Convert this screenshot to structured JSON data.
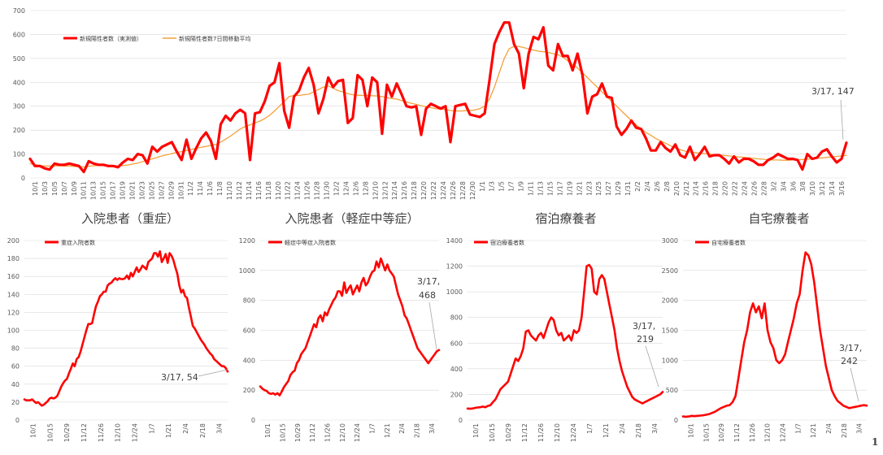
{
  "page_number": "1",
  "chart_data": [
    {
      "type": "line",
      "title": "",
      "legend_position": "top-left",
      "grid": true,
      "ylim": [
        0,
        700
      ],
      "yticks": [
        0,
        100,
        200,
        300,
        400,
        500,
        600,
        700
      ],
      "x_tick_labels": [
        "10/1",
        "10/3",
        "10/5",
        "10/7",
        "10/9",
        "10/11",
        "10/13",
        "10/15",
        "10/17",
        "10/19",
        "10/21",
        "10/23",
        "10/25",
        "10/27",
        "10/29",
        "10/31",
        "11/2",
        "11/4",
        "11/6",
        "11/8",
        "11/10",
        "11/12",
        "11/14",
        "11/16",
        "11/18",
        "11/20",
        "11/22",
        "11/24",
        "11/26",
        "11/28",
        "11/30",
        "12/2",
        "12/4",
        "12/6",
        "12/8",
        "12/10",
        "12/12",
        "12/14",
        "12/16",
        "12/18",
        "12/20",
        "12/22",
        "12/24",
        "12/26",
        "12/28",
        "12/30",
        "1/1",
        "1/3",
        "1/5",
        "1/7",
        "1/9",
        "1/11",
        "1/13",
        "1/15",
        "1/17",
        "1/19",
        "1/21",
        "1/23",
        "1/25",
        "1/27",
        "1/29",
        "1/31",
        "2/2",
        "2/4",
        "2/6",
        "2/8",
        "2/10",
        "2/12",
        "2/14",
        "2/16",
        "2/18",
        "2/20",
        "2/22",
        "2/24",
        "2/26",
        "2/28",
        "3/2",
        "3/4",
        "3/6",
        "3/8",
        "3/10",
        "3/12",
        "3/14",
        "3/16"
      ],
      "series": [
        {
          "name": "新規陽性者数（実測値）",
          "color": "#ff0000",
          "values": [
            80,
            50,
            50,
            40,
            35,
            60,
            55,
            55,
            60,
            55,
            50,
            25,
            70,
            60,
            55,
            55,
            50,
            50,
            45,
            65,
            80,
            75,
            100,
            95,
            60,
            130,
            110,
            130,
            140,
            150,
            110,
            75,
            160,
            80,
            125,
            165,
            190,
            155,
            80,
            225,
            260,
            240,
            270,
            285,
            270,
            75,
            270,
            275,
            320,
            385,
            400,
            480,
            280,
            210,
            340,
            365,
            420,
            460,
            390,
            270,
            330,
            420,
            380,
            405,
            410,
            230,
            250,
            430,
            410,
            300,
            420,
            400,
            185,
            390,
            340,
            395,
            350,
            300,
            295,
            300,
            180,
            290,
            310,
            300,
            290,
            300,
            150,
            300,
            305,
            310,
            265,
            260,
            255,
            270,
            410,
            560,
            610,
            650,
            650,
            560,
            520,
            375,
            520,
            590,
            580,
            630,
            470,
            450,
            560,
            510,
            510,
            450,
            520,
            430,
            270,
            340,
            350,
            395,
            340,
            335,
            215,
            180,
            205,
            240,
            210,
            205,
            165,
            115,
            115,
            150,
            125,
            110,
            140,
            95,
            85,
            130,
            75,
            100,
            130,
            90,
            95,
            95,
            80,
            60,
            90,
            65,
            80,
            80,
            70,
            55,
            55,
            75,
            85,
            100,
            90,
            80,
            80,
            75,
            35,
            100,
            80,
            85,
            110,
            120,
            90,
            65,
            80,
            147
          ]
        },
        {
          "name": "新規陽性者数7日間移動平均",
          "color": "#f4a13b",
          "values": [
            60,
            55,
            52,
            50,
            50,
            50,
            51,
            50,
            50,
            48,
            47,
            46,
            49,
            51,
            52,
            52,
            52,
            51,
            50,
            52,
            54,
            58,
            62,
            68,
            75,
            80,
            86,
            92,
            97,
            102,
            107,
            110,
            115,
            119,
            124,
            128,
            132,
            136,
            140,
            150,
            162,
            175,
            190,
            205,
            215,
            222,
            230,
            238,
            248,
            262,
            280,
            300,
            320,
            340,
            345,
            345,
            348,
            350,
            360,
            370,
            380,
            385,
            375,
            365,
            360,
            352,
            348,
            346,
            345,
            345,
            344,
            343,
            340,
            336,
            332,
            330,
            324,
            318,
            312,
            308,
            302,
            298,
            294,
            290,
            288,
            286,
            282,
            280,
            280,
            281,
            282,
            284,
            290,
            300,
            330,
            380,
            440,
            500,
            540,
            550,
            550,
            545,
            540,
            535,
            530,
            528,
            525,
            520,
            515,
            505,
            490,
            475,
            460,
            440,
            420,
            400,
            380,
            360,
            340,
            320,
            300,
            280,
            260,
            240,
            222,
            205,
            190,
            178,
            165,
            155,
            145,
            135,
            125,
            118,
            112,
            108,
            106,
            104,
            102,
            100,
            98,
            96,
            94,
            92,
            90,
            88,
            86,
            84,
            82,
            80,
            78,
            76,
            75,
            75,
            74,
            74,
            75,
            76,
            77,
            78,
            80,
            82,
            84,
            86,
            88,
            90,
            92,
            94
          ]
        }
      ]
    },
    {
      "type": "line",
      "title": "入院患者（重症）",
      "legend_position": "top-left",
      "grid": true,
      "ylim": [
        0,
        200
      ],
      "yticks": [
        0,
        20,
        40,
        60,
        80,
        100,
        120,
        140,
        160,
        180,
        200
      ],
      "x_tick_labels": [
        "10/1",
        "10/15",
        "10/29",
        "11/12",
        "11/26",
        "12/10",
        "12/24",
        "1/7",
        "1/21",
        "2/4",
        "2/18",
        "3/4"
      ],
      "series": [
        {
          "name": "重症入院者数",
          "color": "#ff0000",
          "values": [
            23,
            22,
            22,
            22,
            23,
            21,
            19,
            20,
            18,
            16,
            17,
            19,
            21,
            24,
            25,
            24,
            25,
            27,
            32,
            37,
            41,
            44,
            46,
            52,
            57,
            63,
            60,
            68,
            70,
            76,
            84,
            92,
            100,
            107,
            107,
            108,
            118,
            127,
            132,
            138,
            140,
            143,
            143,
            150,
            152,
            153,
            156,
            158,
            156,
            158,
            157,
            157,
            158,
            161,
            157,
            164,
            160,
            165,
            170,
            165,
            168,
            172,
            170,
            168,
            176,
            178,
            180,
            186,
            186,
            182,
            188,
            176,
            180,
            185,
            175,
            186,
            183,
            178,
            170,
            163,
            150,
            142,
            145,
            138,
            136,
            125,
            115,
            105,
            102,
            98,
            94,
            90,
            87,
            84,
            80,
            77,
            74,
            72,
            68,
            66,
            64,
            62,
            60,
            60,
            58,
            54
          ]
        }
      ]
    },
    {
      "type": "line",
      "title": "入院患者（軽症中等症）",
      "legend_position": "top-left",
      "grid": true,
      "ylim": [
        0,
        1200
      ],
      "yticks": [
        0,
        200,
        400,
        600,
        800,
        1000,
        1200
      ],
      "x_tick_labels": [
        "10/1",
        "10/15",
        "10/29",
        "11/12",
        "11/26",
        "12/10",
        "12/24",
        "1/7",
        "1/21",
        "2/4",
        "2/18",
        "3/4"
      ],
      "series": [
        {
          "name": "軽症中等症入院者数",
          "color": "#ff0000",
          "values": [
            225,
            210,
            200,
            195,
            180,
            175,
            180,
            170,
            180,
            165,
            190,
            220,
            240,
            260,
            300,
            320,
            330,
            380,
            400,
            440,
            460,
            480,
            520,
            560,
            600,
            640,
            620,
            680,
            700,
            660,
            720,
            700,
            740,
            770,
            800,
            820,
            860,
            860,
            830,
            920,
            850,
            880,
            900,
            840,
            870,
            900,
            860,
            920,
            950,
            900,
            920,
            960,
            990,
            1000,
            1060,
            1020,
            1080,
            1040,
            1000,
            1040,
            1000,
            980,
            960,
            900,
            840,
            800,
            760,
            700,
            680,
            640,
            600,
            560,
            520,
            480,
            460,
            440,
            420,
            400,
            380,
            400,
            420,
            440,
            460,
            468
          ]
        }
      ]
    },
    {
      "type": "line",
      "title": "宿泊療養者",
      "legend_position": "top-left",
      "grid": true,
      "ylim": [
        0,
        1400
      ],
      "yticks": [
        0,
        200,
        400,
        600,
        800,
        1000,
        1200,
        1400
      ],
      "x_tick_labels": [
        "10/1",
        "10/15",
        "10/29",
        "11/12",
        "11/26",
        "12/10",
        "12/24",
        "1/7",
        "1/21",
        "2/4",
        "2/18",
        "3/4"
      ],
      "series": [
        {
          "name": "宿泊療養者数",
          "color": "#ff0000",
          "values": [
            90,
            88,
            90,
            95,
            98,
            100,
            105,
            100,
            110,
            115,
            140,
            160,
            200,
            240,
            260,
            280,
            300,
            360,
            420,
            480,
            460,
            500,
            560,
            690,
            700,
            660,
            640,
            620,
            660,
            680,
            640,
            700,
            760,
            800,
            780,
            700,
            660,
            680,
            620,
            640,
            660,
            620,
            700,
            680,
            700,
            800,
            1000,
            1200,
            1210,
            1180,
            1000,
            980,
            1100,
            1130,
            1100,
            1000,
            900,
            800,
            700,
            560,
            460,
            380,
            320,
            260,
            220,
            180,
            160,
            150,
            140,
            130,
            140,
            150,
            160,
            170,
            180,
            190,
            200,
            219
          ]
        }
      ]
    },
    {
      "type": "line",
      "title": "自宅療養者",
      "legend_position": "top-left",
      "grid": true,
      "ylim": [
        0,
        3000
      ],
      "yticks": [
        0,
        500,
        1000,
        1500,
        2000,
        2500,
        3000
      ],
      "x_tick_labels": [
        "10/1",
        "10/15",
        "10/29",
        "11/12",
        "11/26",
        "12/10",
        "12/24",
        "1/7",
        "1/21",
        "2/4",
        "2/18",
        "3/4"
      ],
      "series": [
        {
          "name": "自宅療養者数",
          "color": "#ff0000",
          "values": [
            60,
            55,
            60,
            70,
            65,
            70,
            75,
            80,
            90,
            100,
            120,
            140,
            170,
            200,
            220,
            240,
            250,
            300,
            400,
            700,
            1000,
            1300,
            1500,
            1800,
            1950,
            1800,
            1900,
            1700,
            1950,
            1500,
            1300,
            1200,
            1000,
            950,
            1000,
            1100,
            1300,
            1500,
            1700,
            1950,
            2100,
            2500,
            2800,
            2750,
            2600,
            2300,
            1900,
            1500,
            1200,
            900,
            700,
            500,
            400,
            320,
            280,
            240,
            220,
            200,
            210,
            220,
            230,
            240,
            250,
            242
          ]
        }
      ]
    }
  ],
  "annotations": [
    "3/17, 147",
    "3/17, 54",
    "3/17,",
    "468",
    "3/17,",
    "219",
    "3/17,",
    "242"
  ]
}
